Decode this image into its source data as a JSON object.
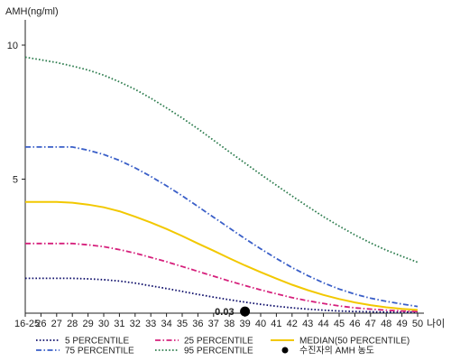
{
  "chart_data": {
    "type": "line",
    "ylabel": "AMH(ng/ml)",
    "xlabel": "나이",
    "ylim": [
      0,
      11
    ],
    "y_ticks": [
      10,
      5
    ],
    "x_ticks": [
      "16-25",
      "26",
      "27",
      "28",
      "29",
      "30",
      "31",
      "32",
      "33",
      "34",
      "35",
      "36",
      "37",
      "38",
      "39",
      "40",
      "41",
      "42",
      "43",
      "44",
      "45",
      "46",
      "47",
      "48",
      "49",
      "50"
    ],
    "x_start_value": 25,
    "x_end_value": 50,
    "x_scale": "categorical",
    "grid": false,
    "series": [
      {
        "name": "5 PERCENTILE",
        "color": "#10106b",
        "style": "dotted",
        "points": [
          [
            25,
            1.3
          ],
          [
            26,
            1.3
          ],
          [
            27,
            1.3
          ],
          [
            28,
            1.3
          ],
          [
            29,
            1.28
          ],
          [
            30,
            1.25
          ],
          [
            31,
            1.2
          ],
          [
            32,
            1.12
          ],
          [
            33,
            1.02
          ],
          [
            34,
            0.92
          ],
          [
            35,
            0.81
          ],
          [
            36,
            0.7
          ],
          [
            37,
            0.6
          ],
          [
            38,
            0.5
          ],
          [
            39,
            0.41
          ],
          [
            40,
            0.33
          ],
          [
            41,
            0.26
          ],
          [
            42,
            0.2
          ],
          [
            43,
            0.15
          ],
          [
            44,
            0.11
          ],
          [
            45,
            0.08
          ],
          [
            46,
            0.06
          ],
          [
            47,
            0.05
          ],
          [
            48,
            0.04
          ],
          [
            49,
            0.04
          ],
          [
            50,
            0.04
          ]
        ]
      },
      {
        "name": "25 PERCENTILE",
        "color": "#d6207c",
        "style": "dashdot",
        "points": [
          [
            25,
            2.6
          ],
          [
            26,
            2.6
          ],
          [
            27,
            2.6
          ],
          [
            28,
            2.6
          ],
          [
            29,
            2.55
          ],
          [
            30,
            2.48
          ],
          [
            31,
            2.37
          ],
          [
            32,
            2.24
          ],
          [
            33,
            2.08
          ],
          [
            34,
            1.92
          ],
          [
            35,
            1.74
          ],
          [
            36,
            1.56
          ],
          [
            37,
            1.38
          ],
          [
            38,
            1.2
          ],
          [
            39,
            1.03
          ],
          [
            40,
            0.87
          ],
          [
            41,
            0.72
          ],
          [
            42,
            0.58
          ],
          [
            43,
            0.46
          ],
          [
            44,
            0.36
          ],
          [
            45,
            0.27
          ],
          [
            46,
            0.2
          ],
          [
            47,
            0.15
          ],
          [
            48,
            0.11
          ],
          [
            49,
            0.08
          ],
          [
            50,
            0.06
          ]
        ]
      },
      {
        "name": "MEDIAN(50 PERCENTILE)",
        "color": "#f2c800",
        "style": "solid",
        "points": [
          [
            25,
            4.15
          ],
          [
            26,
            4.15
          ],
          [
            27,
            4.15
          ],
          [
            28,
            4.12
          ],
          [
            29,
            4.05
          ],
          [
            30,
            3.95
          ],
          [
            31,
            3.8
          ],
          [
            32,
            3.6
          ],
          [
            33,
            3.38
          ],
          [
            34,
            3.14
          ],
          [
            35,
            2.88
          ],
          [
            36,
            2.6
          ],
          [
            37,
            2.33
          ],
          [
            38,
            2.05
          ],
          [
            39,
            1.78
          ],
          [
            40,
            1.53
          ],
          [
            41,
            1.29
          ],
          [
            42,
            1.06
          ],
          [
            43,
            0.86
          ],
          [
            44,
            0.68
          ],
          [
            45,
            0.53
          ],
          [
            46,
            0.4
          ],
          [
            47,
            0.3
          ],
          [
            48,
            0.22
          ],
          [
            49,
            0.16
          ],
          [
            50,
            0.12
          ]
        ]
      },
      {
        "name": "75 PERCENTILE",
        "color": "#3a5fc8",
        "style": "dashdot",
        "points": [
          [
            25,
            6.2
          ],
          [
            26,
            6.2
          ],
          [
            27,
            6.2
          ],
          [
            28,
            6.2
          ],
          [
            29,
            6.08
          ],
          [
            30,
            5.92
          ],
          [
            31,
            5.7
          ],
          [
            32,
            5.42
          ],
          [
            33,
            5.1
          ],
          [
            34,
            4.75
          ],
          [
            35,
            4.38
          ],
          [
            36,
            3.98
          ],
          [
            37,
            3.58
          ],
          [
            38,
            3.18
          ],
          [
            39,
            2.78
          ],
          [
            40,
            2.4
          ],
          [
            41,
            2.04
          ],
          [
            42,
            1.7
          ],
          [
            43,
            1.4
          ],
          [
            44,
            1.13
          ],
          [
            45,
            0.9
          ],
          [
            46,
            0.71
          ],
          [
            47,
            0.56
          ],
          [
            48,
            0.44
          ],
          [
            49,
            0.34
          ],
          [
            50,
            0.25
          ]
        ]
      },
      {
        "name": "95 PERCENTILE",
        "color": "#2e7d4f",
        "style": "dotted",
        "points": [
          [
            25,
            9.55
          ],
          [
            26,
            9.45
          ],
          [
            27,
            9.35
          ],
          [
            28,
            9.22
          ],
          [
            29,
            9.07
          ],
          [
            30,
            8.88
          ],
          [
            31,
            8.63
          ],
          [
            32,
            8.35
          ],
          [
            33,
            8.02
          ],
          [
            34,
            7.66
          ],
          [
            35,
            7.28
          ],
          [
            36,
            6.88
          ],
          [
            37,
            6.45
          ],
          [
            38,
            6.02
          ],
          [
            39,
            5.6
          ],
          [
            40,
            5.18
          ],
          [
            41,
            4.77
          ],
          [
            42,
            4.37
          ],
          [
            43,
            3.98
          ],
          [
            44,
            3.6
          ],
          [
            45,
            3.25
          ],
          [
            46,
            2.92
          ],
          [
            47,
            2.62
          ],
          [
            48,
            2.35
          ],
          [
            49,
            2.12
          ],
          [
            50,
            1.9
          ]
        ]
      }
    ],
    "marker": {
      "name": "수진자의 AMH 농도",
      "x": 39,
      "y": 0.03,
      "label": "0.03",
      "color": "#000000"
    }
  },
  "legend": {
    "items": [
      {
        "label": "5 PERCENTILE",
        "color": "#10106b",
        "style": "dotted"
      },
      {
        "label": "25 PERCENTILE",
        "color": "#d6207c",
        "style": "dashdot"
      },
      {
        "label": "MEDIAN(50 PERCENTILE)",
        "color": "#f2c800",
        "style": "solid"
      },
      {
        "label": "75 PERCENTILE",
        "color": "#3a5fc8",
        "style": "dashdot"
      },
      {
        "label": "95 PERCENTILE",
        "color": "#2e7d4f",
        "style": "dotted"
      },
      {
        "label": "수진자의 AMH 농도",
        "color": "#000000",
        "style": "dot"
      }
    ]
  }
}
